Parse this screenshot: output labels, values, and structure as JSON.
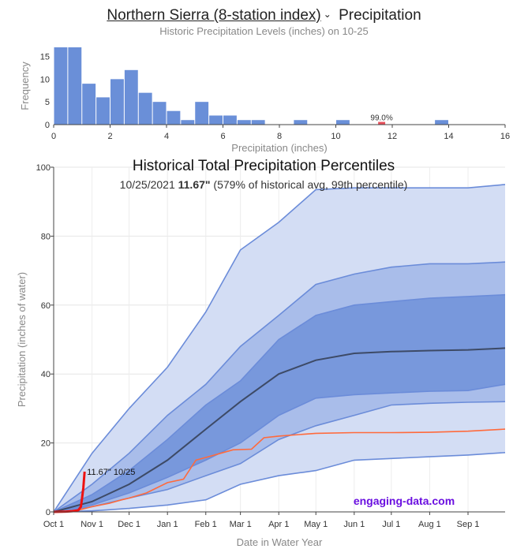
{
  "header": {
    "station": "Northern Sierra (8-station index)",
    "suffix": "Precipitation",
    "subtitle": "Historic Precipitation Levels (inches) on 10-25"
  },
  "colors": {
    "bar": "#6a8fd8",
    "highlight": "#e8505b",
    "band_outer": "#d3ddf4",
    "band_mid": "#a9bdea",
    "band_inner": "#7898dc",
    "band_line": "#6b8cd9",
    "median": "#3d4a66",
    "last_year": "#ff6a3c",
    "current": "#ee1111",
    "watermark": "#6a0fe0"
  },
  "chart_data": [
    {
      "type": "bar",
      "xlabel": "Precipitation (inches)",
      "ylabel": "Frequency",
      "xlim": [
        0,
        16
      ],
      "ylim": [
        0,
        17
      ],
      "xticks": [
        "0",
        "2",
        "4",
        "6",
        "8",
        "10",
        "12",
        "14",
        "16"
      ],
      "yticks": [
        "0",
        "5",
        "10",
        "15"
      ],
      "bin_width": 0.5,
      "bins": [
        {
          "x0": 0.0,
          "v": 17
        },
        {
          "x0": 0.5,
          "v": 17
        },
        {
          "x0": 1.0,
          "v": 9
        },
        {
          "x0": 1.5,
          "v": 6
        },
        {
          "x0": 2.0,
          "v": 10
        },
        {
          "x0": 2.5,
          "v": 12
        },
        {
          "x0": 3.0,
          "v": 7
        },
        {
          "x0": 3.5,
          "v": 5
        },
        {
          "x0": 4.0,
          "v": 3
        },
        {
          "x0": 4.5,
          "v": 1
        },
        {
          "x0": 5.0,
          "v": 5
        },
        {
          "x0": 5.5,
          "v": 2
        },
        {
          "x0": 6.0,
          "v": 2
        },
        {
          "x0": 6.5,
          "v": 1
        },
        {
          "x0": 7.0,
          "v": 1
        },
        {
          "x0": 8.5,
          "v": 1
        },
        {
          "x0": 10.0,
          "v": 1
        },
        {
          "x0": 13.5,
          "v": 1
        }
      ],
      "highlight": {
        "x0": 11.5,
        "v": 0.6,
        "label": "99.0%"
      }
    },
    {
      "type": "area",
      "title": "Historical Total Precipitation Percentiles",
      "subtitle_pre": "10/25/2021 ",
      "subtitle_bold": "11.67\"",
      "subtitle_post": " (579% of historical avg, 99th percentile)",
      "xlabel": "Date in Water Year",
      "ylabel": "Precipitation (inches of water)",
      "ylim": [
        0,
        100
      ],
      "xlim": [
        0,
        365
      ],
      "yticks": [
        "0",
        "20",
        "40",
        "60",
        "80",
        "100"
      ],
      "xticks": [
        {
          "day": 0,
          "label": "Oct 1"
        },
        {
          "day": 31,
          "label": "Nov 1"
        },
        {
          "day": 61,
          "label": "Dec 1"
        },
        {
          "day": 92,
          "label": "Jan 1"
        },
        {
          "day": 123,
          "label": "Feb 1"
        },
        {
          "day": 151,
          "label": "Mar 1"
        },
        {
          "day": 182,
          "label": "Apr 1"
        },
        {
          "day": 212,
          "label": "May 1"
        },
        {
          "day": 243,
          "label": "Jun 1"
        },
        {
          "day": 273,
          "label": "Jul 1"
        },
        {
          "day": 304,
          "label": "Aug 1"
        },
        {
          "day": 335,
          "label": "Sep 1"
        }
      ],
      "days": [
        0,
        31,
        61,
        92,
        123,
        151,
        182,
        212,
        243,
        273,
        304,
        335,
        365
      ],
      "series": [
        {
          "key": "max",
          "values": [
            0,
            17,
            30,
            42,
            58,
            76,
            84,
            93.5,
            94,
            94,
            94,
            94,
            95
          ]
        },
        {
          "key": "p90",
          "values": [
            0,
            8,
            17,
            28,
            37,
            48,
            57,
            66,
            69,
            71,
            72,
            72,
            72.5
          ]
        },
        {
          "key": "p75",
          "values": [
            0,
            5,
            12,
            21,
            31,
            38,
            50,
            57,
            60,
            61,
            62,
            62.5,
            63
          ]
        },
        {
          "key": "p50",
          "values": [
            0,
            3,
            8,
            15,
            24,
            32,
            40,
            44,
            46,
            46.5,
            46.8,
            47,
            47.5
          ]
        },
        {
          "key": "p25",
          "values": [
            0,
            2,
            5.5,
            10,
            15,
            20,
            28,
            33,
            34,
            34.5,
            35,
            35.2,
            37
          ]
        },
        {
          "key": "p10",
          "values": [
            0,
            1.5,
            4,
            6.5,
            10.5,
            14,
            21,
            25,
            28,
            31,
            31.5,
            31.8,
            32
          ]
        },
        {
          "key": "min",
          "values": [
            0,
            0.3,
            1,
            2,
            3.5,
            8,
            10.5,
            12,
            15,
            15.5,
            16,
            16.5,
            17.2
          ]
        }
      ],
      "last_year": {
        "days": [
          0,
          20,
          31,
          45,
          55,
          61,
          75,
          92,
          105,
          115,
          125,
          135,
          145,
          160,
          170,
          182,
          212,
          243,
          273,
          304,
          335,
          365
        ],
        "values": [
          0,
          0.5,
          1.5,
          2.5,
          3.5,
          4,
          5.5,
          8.5,
          9.5,
          15,
          16,
          17,
          18,
          18.2,
          21.5,
          22,
          22.8,
          23,
          23,
          23.1,
          23.4,
          24
        ]
      },
      "current": {
        "days": [
          0,
          10,
          15,
          20,
          22,
          23,
          24,
          25
        ],
        "values": [
          0,
          0.1,
          0.2,
          0.5,
          1.5,
          4,
          7,
          11.67
        ],
        "label": "11.67\" 10/25"
      },
      "watermark": "engaging-data.com"
    }
  ]
}
